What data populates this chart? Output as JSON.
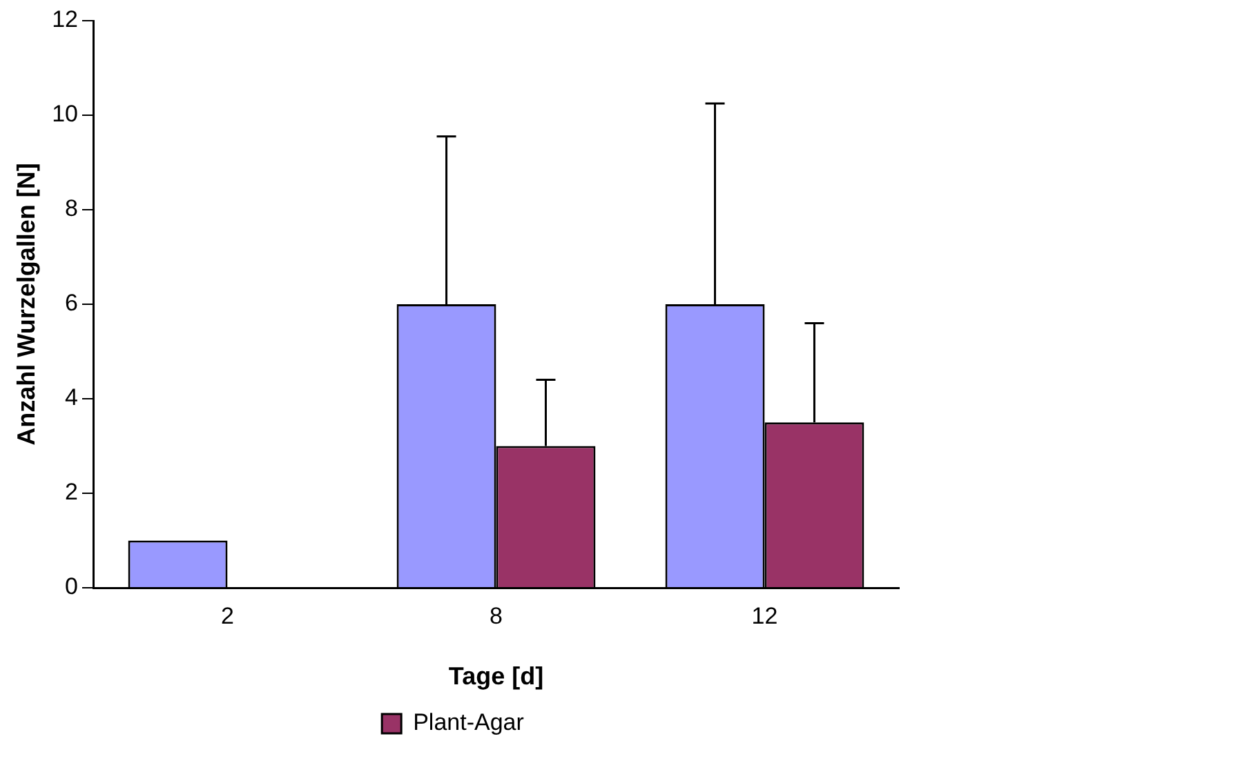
{
  "chart_data": {
    "type": "bar",
    "xlabel": "Tage [d]",
    "ylabel": "Anzahl Wurzelgallen [N]",
    "categories": [
      "2",
      "8",
      "12"
    ],
    "series": [
      {
        "color": "#9999ff",
        "values": [
          1,
          6,
          6
        ],
        "errors": [
          null,
          [
            6,
            9.55
          ],
          [
            6,
            10.25
          ]
        ]
      },
      {
        "name": "Plant-Agar",
        "color": "#993366",
        "values": [
          0,
          3,
          3.5
        ],
        "errors": [
          null,
          [
            3,
            4.4
          ],
          [
            3.5,
            5.6
          ]
        ]
      }
    ],
    "ylim": [
      0,
      12
    ],
    "yticks": [
      0,
      2,
      4,
      6,
      8,
      10,
      12
    ],
    "grid": false,
    "legend": "bottom"
  }
}
